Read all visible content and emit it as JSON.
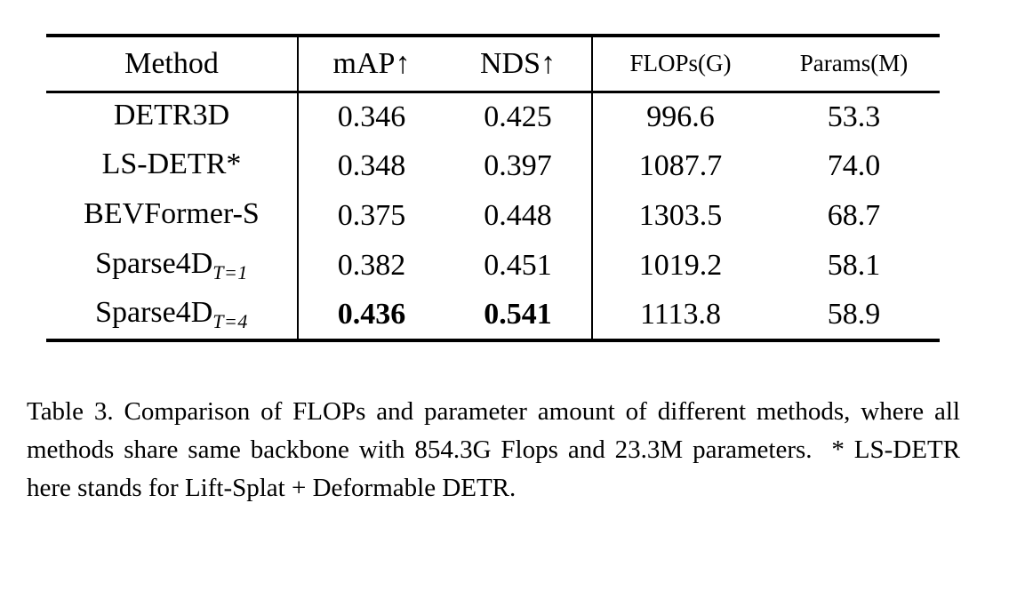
{
  "table": {
    "header": {
      "method": "Method",
      "map": "mAP↑",
      "nds": "NDS↑",
      "flops": "FLOPs(G)",
      "params": "Params(M)"
    },
    "rows": [
      {
        "method": "DETR3D",
        "method_sub": "",
        "map": "0.346",
        "nds": "0.425",
        "flops": "996.6",
        "params": "53.3"
      },
      {
        "method": "LS-DETR*",
        "method_sub": "",
        "map": "0.348",
        "nds": "0.397",
        "flops": "1087.7",
        "params": "74.0"
      },
      {
        "method": "BEVFormer-S",
        "method_sub": "",
        "map": "0.375",
        "nds": "0.448",
        "flops": "1303.5",
        "params": "68.7"
      },
      {
        "method": "Sparse4D",
        "method_sub": "T=1",
        "map": "0.382",
        "nds": "0.451",
        "flops": "1019.2",
        "params": "58.1"
      },
      {
        "method": "Sparse4D",
        "method_sub": "T=4",
        "map": "0.436",
        "nds": "0.541",
        "flops": "1113.8",
        "params": "58.9"
      }
    ]
  },
  "caption": "Table 3. Comparison of FLOPs and parameter amount of different methods, where all methods share same backbone with 854.3G Flops and 23.3M parameters.  * LS-DETR here stands for Lift-Splat + Deformable DETR."
}
